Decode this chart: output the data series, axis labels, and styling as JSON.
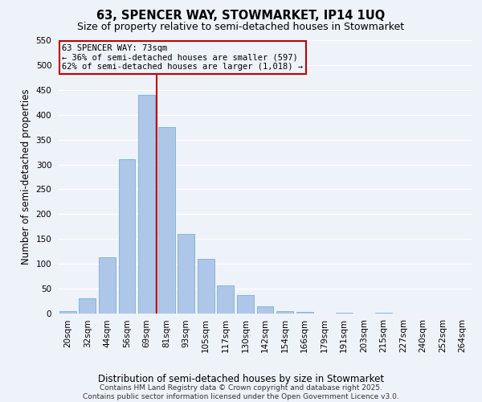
{
  "title": "63, SPENCER WAY, STOWMARKET, IP14 1UQ",
  "subtitle": "Size of property relative to semi-detached houses in Stowmarket",
  "xlabel": "Distribution of semi-detached houses by size in Stowmarket",
  "ylabel": "Number of semi-detached properties",
  "bin_labels": [
    "20sqm",
    "32sqm",
    "44sqm",
    "56sqm",
    "69sqm",
    "81sqm",
    "93sqm",
    "105sqm",
    "117sqm",
    "130sqm",
    "142sqm",
    "154sqm",
    "166sqm",
    "179sqm",
    "191sqm",
    "203sqm",
    "215sqm",
    "227sqm",
    "240sqm",
    "252sqm",
    "264sqm"
  ],
  "bar_values": [
    5,
    30,
    113,
    311,
    440,
    375,
    160,
    110,
    57,
    38,
    15,
    5,
    3,
    0,
    2,
    0,
    1,
    0,
    0,
    0,
    0
  ],
  "bar_color": "#aec6e8",
  "bar_edge_color": "#7bafd4",
  "highlight_color": "#c00000",
  "vline_bin_index": 4,
  "annotation_title": "63 SPENCER WAY: 73sqm",
  "annotation_line1": "← 36% of semi-detached houses are smaller (597)",
  "annotation_line2": "62% of semi-detached houses are larger (1,018) →",
  "annotation_box_color": "#c00000",
  "ylim": [
    0,
    550
  ],
  "yticks": [
    0,
    50,
    100,
    150,
    200,
    250,
    300,
    350,
    400,
    450,
    500,
    550
  ],
  "footer_line1": "Contains HM Land Registry data © Crown copyright and database right 2025.",
  "footer_line2": "Contains public sector information licensed under the Open Government Licence v3.0.",
  "bg_color": "#eef2f9",
  "grid_color": "#ffffff",
  "title_fontsize": 10.5,
  "subtitle_fontsize": 9,
  "axis_label_fontsize": 8.5,
  "tick_fontsize": 7.5,
  "annotation_fontsize": 7.5,
  "footer_fontsize": 6.5
}
